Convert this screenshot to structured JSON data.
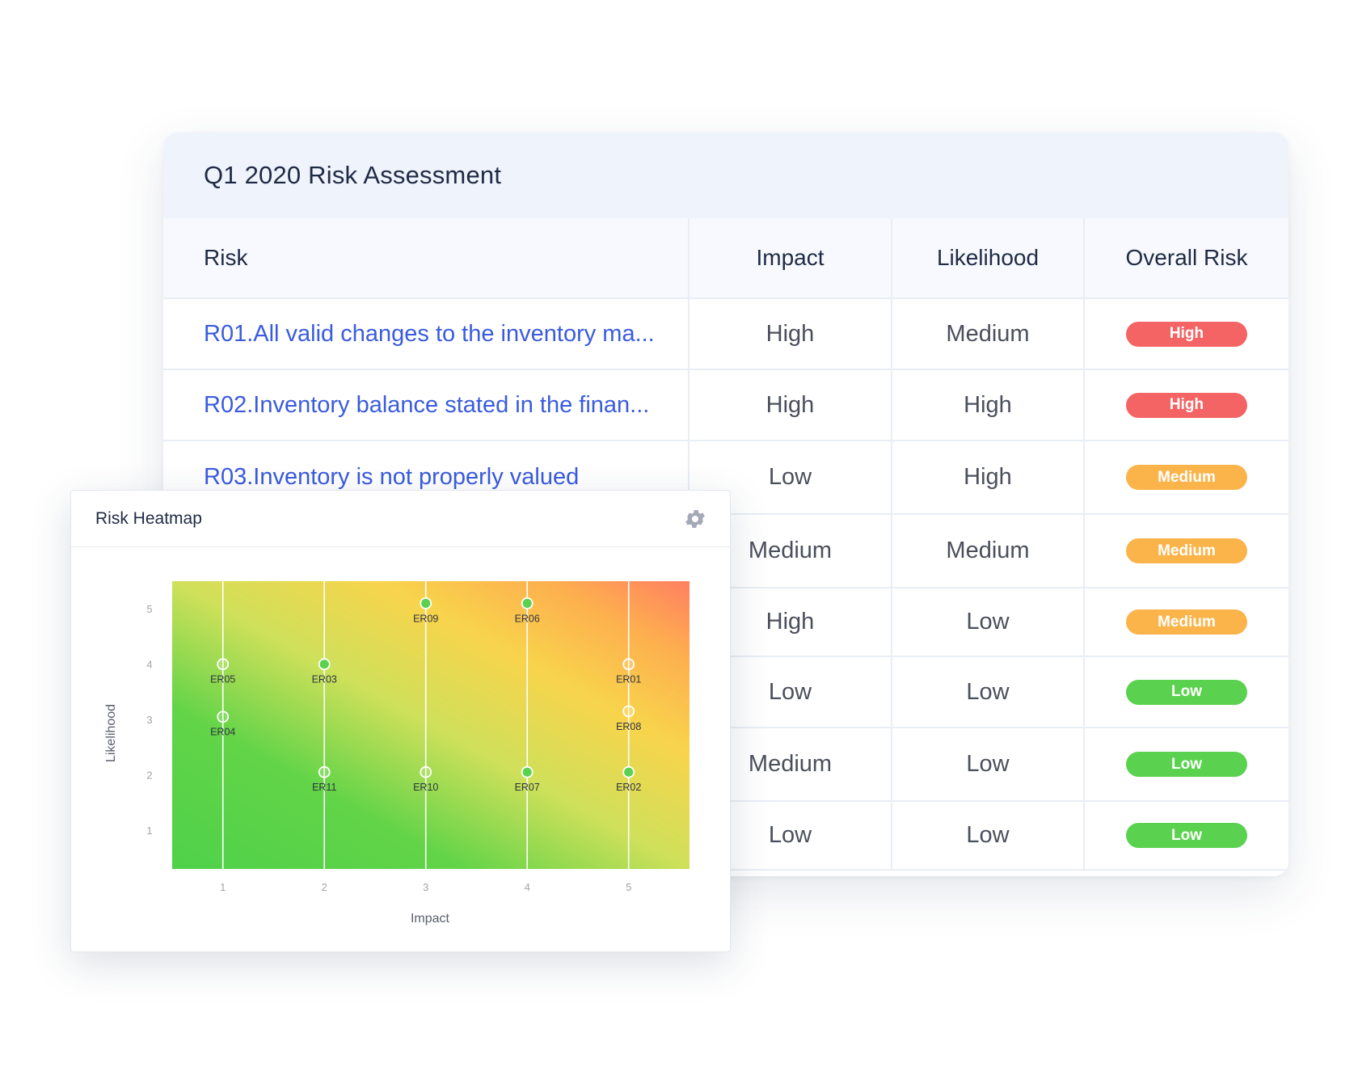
{
  "assessment": {
    "title": "Q1  2020 Risk Assessment",
    "columns": {
      "risk": "Risk",
      "impact": "Impact",
      "likelihood": "Likelihood",
      "overall": "Overall Risk"
    },
    "rows": [
      {
        "risk": "R01.All valid changes to the inventory ma...",
        "impact": "High",
        "likelihood": "Medium",
        "overall": "High"
      },
      {
        "risk": "R02.Inventory balance stated in the finan...",
        "impact": "High",
        "likelihood": "High",
        "overall": "High"
      },
      {
        "risk": "R03.Inventory is not properly valued",
        "impact": "Low",
        "likelihood": "High",
        "overall": "Medium"
      },
      {
        "risk": "",
        "impact": "Medium",
        "likelihood": "Medium",
        "overall": "Medium"
      },
      {
        "risk": "",
        "impact": "High",
        "likelihood": "Low",
        "overall": "Medium"
      },
      {
        "risk": "",
        "impact": "Low",
        "likelihood": "Low",
        "overall": "Low"
      },
      {
        "risk": "",
        "impact": "Medium",
        "likelihood": "Low",
        "overall": "Low"
      },
      {
        "risk": "",
        "impact": "Low",
        "likelihood": "Low",
        "overall": "Low"
      }
    ],
    "badge_colors": {
      "High": "#f46464",
      "Medium": "#fbb44a",
      "Low": "#5bd24f"
    }
  },
  "heatmap": {
    "title": "Risk Heatmap",
    "settings_icon": "gear-icon",
    "colors": {
      "low": "#4fd14a",
      "mid": "#f8d44c",
      "high": "#ff8a62",
      "marker": "#5bd24f"
    }
  },
  "chart_data": {
    "type": "scatter",
    "xlabel": "Impact",
    "ylabel": "Likelihood",
    "xlim": [
      0.5,
      5.6
    ],
    "ylim": [
      0.3,
      5.5
    ],
    "xticks": [
      "1",
      "2",
      "3",
      "4",
      "5"
    ],
    "yticks": [
      "1",
      "2",
      "3",
      "4",
      "5"
    ],
    "grid": "vertical",
    "points": [
      {
        "label": "ER05",
        "x": 1,
        "y": 4.0,
        "filled": false
      },
      {
        "label": "ER04",
        "x": 1,
        "y": 3.05,
        "filled": false
      },
      {
        "label": "ER03",
        "x": 2,
        "y": 4.0,
        "filled": true
      },
      {
        "label": "ER11",
        "x": 2,
        "y": 2.05,
        "filled": false
      },
      {
        "label": "ER09",
        "x": 3,
        "y": 5.1,
        "filled": true
      },
      {
        "label": "ER10",
        "x": 3,
        "y": 2.05,
        "filled": false
      },
      {
        "label": "ER06",
        "x": 4,
        "y": 5.1,
        "filled": true
      },
      {
        "label": "ER07",
        "x": 4,
        "y": 2.05,
        "filled": true
      },
      {
        "label": "ER01",
        "x": 5,
        "y": 4.0,
        "filled": false
      },
      {
        "label": "ER08",
        "x": 5,
        "y": 3.15,
        "filled": false
      },
      {
        "label": "ER02",
        "x": 5,
        "y": 2.05,
        "filled": true
      }
    ]
  }
}
